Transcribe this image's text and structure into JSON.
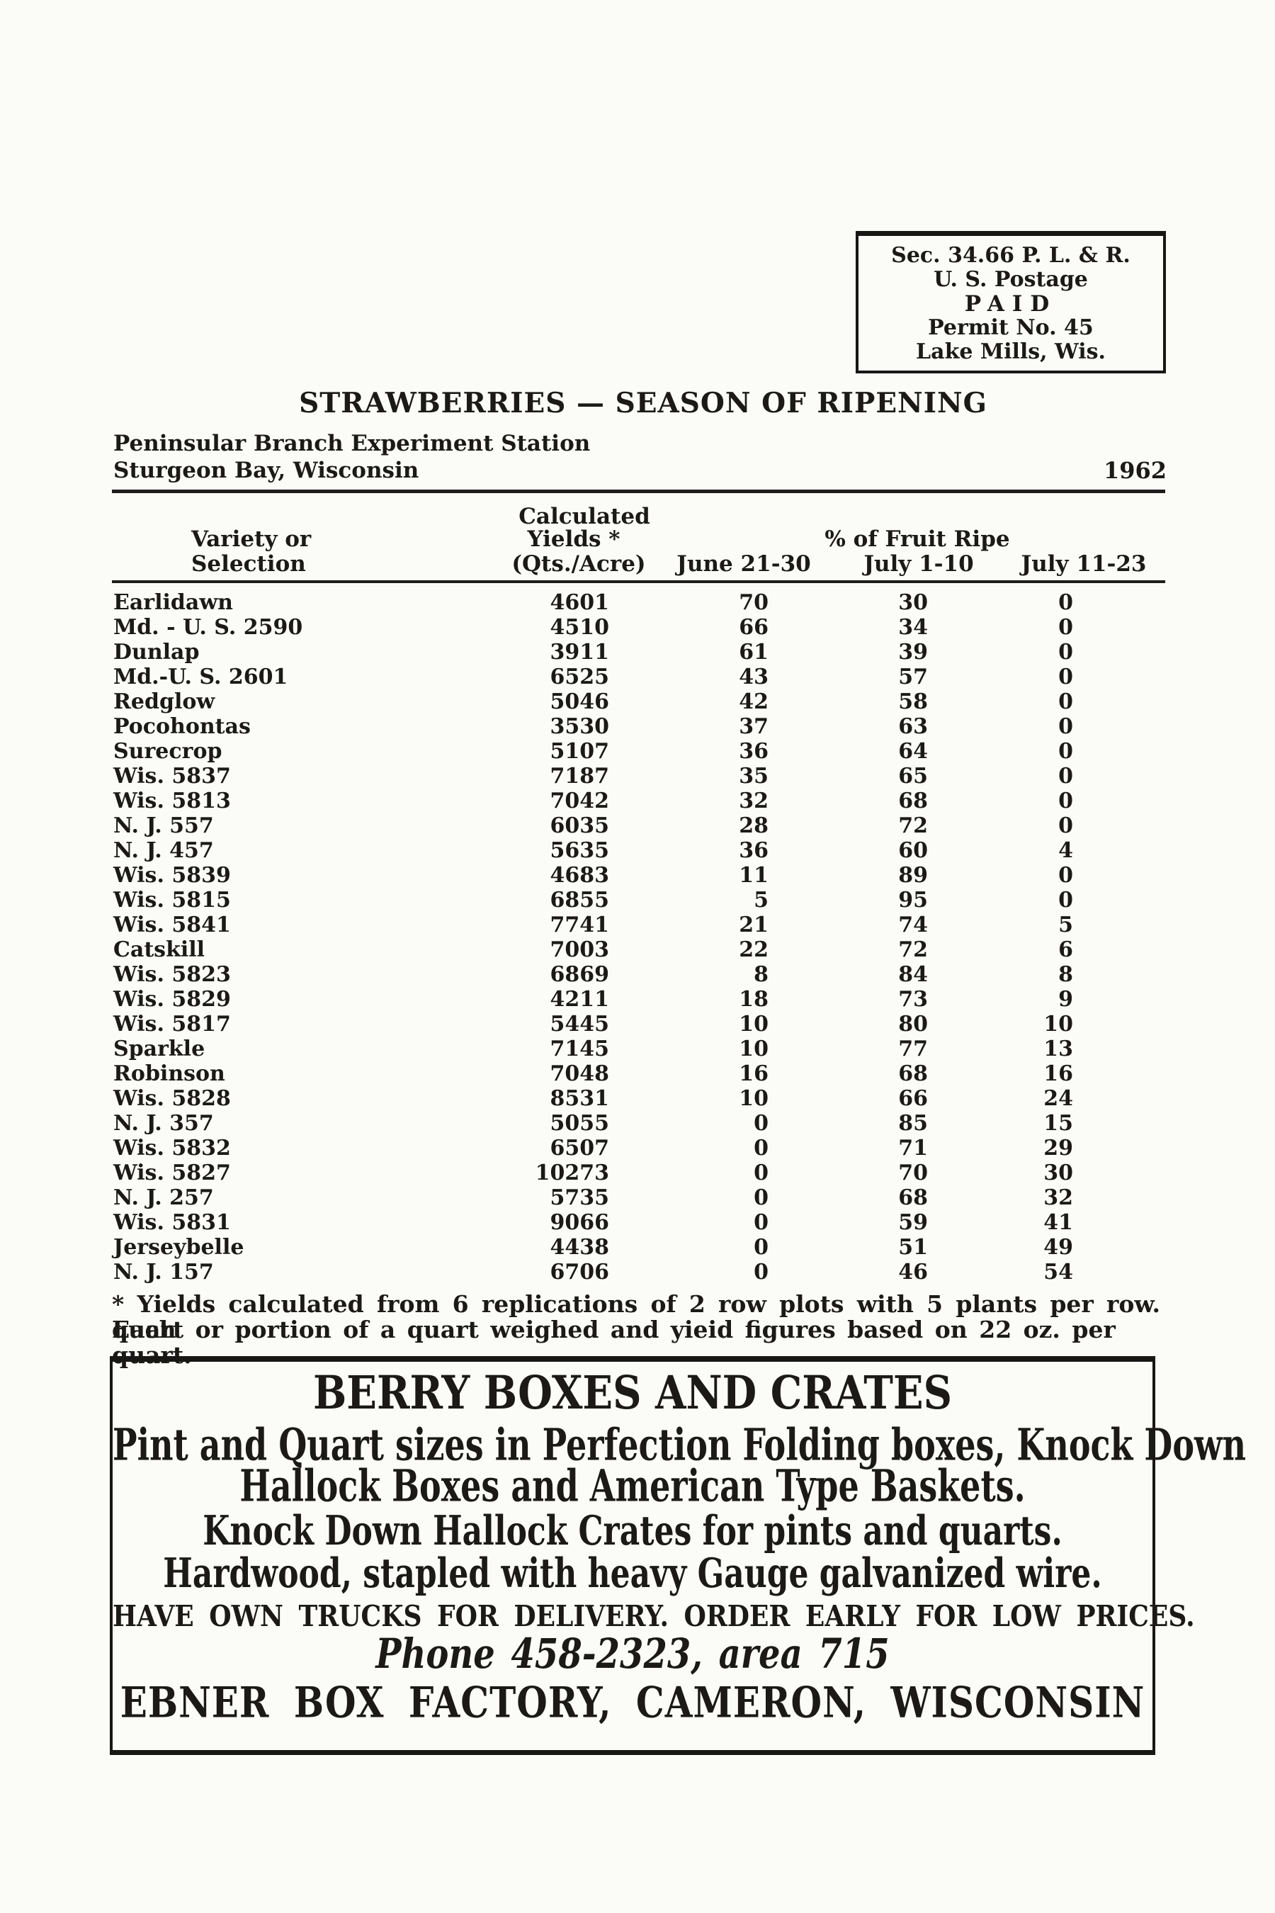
{
  "postage": {
    "line1": "Sec. 34.66 P. L. & R.",
    "line2": "U. S. Postage",
    "line3": "PAID",
    "line4": "Permit No. 45",
    "line5": "Lake Mills, Wis."
  },
  "header": {
    "title": "STRAWBERRIES — SEASON OF RIPENING",
    "station_line1": "Peninsular Branch Experiment Station",
    "station_line2": "Sturgeon Bay, Wisconsin",
    "year": "1962"
  },
  "table": {
    "col_headers": {
      "calculated": "Calculated",
      "variety_line1": "Variety or",
      "variety_line2": "Selection",
      "yields": "Yields *",
      "qts_acre": "(Qts./Acre)",
      "pct_ripe": "% of Fruit Ripe",
      "june": "June 21-30",
      "july_early": "July 1-10",
      "july_late": "July 11-23"
    },
    "rows": [
      [
        "Earlidawn",
        "4601",
        "70",
        "30",
        "0"
      ],
      [
        "Md. - U. S. 2590",
        "4510",
        "66",
        "34",
        "0"
      ],
      [
        "Dunlap",
        "3911",
        "61",
        "39",
        "0"
      ],
      [
        "Md.-U. S. 2601",
        "6525",
        "43",
        "57",
        "0"
      ],
      [
        "Redglow",
        "5046",
        "42",
        "58",
        "0"
      ],
      [
        "Pocohontas",
        "3530",
        "37",
        "63",
        "0"
      ],
      [
        "Surecrop",
        "5107",
        "36",
        "64",
        "0"
      ],
      [
        "Wis. 5837",
        "7187",
        "35",
        "65",
        "0"
      ],
      [
        "Wis. 5813",
        "7042",
        "32",
        "68",
        "0"
      ],
      [
        "N. J. 557",
        "6035",
        "28",
        "72",
        "0"
      ],
      [
        "N. J. 457",
        "5635",
        "36",
        "60",
        "4"
      ],
      [
        "Wis. 5839",
        "4683",
        "11",
        "89",
        "0"
      ],
      [
        "Wis. 5815",
        "6855",
        "5",
        "95",
        "0"
      ],
      [
        "Wis. 5841",
        "7741",
        "21",
        "74",
        "5"
      ],
      [
        "Catskill",
        "7003",
        "22",
        "72",
        "6"
      ],
      [
        "Wis. 5823",
        "6869",
        "8",
        "84",
        "8"
      ],
      [
        "Wis. 5829",
        "4211",
        "18",
        "73",
        "9"
      ],
      [
        "Wis. 5817",
        "5445",
        "10",
        "80",
        "10"
      ],
      [
        "Sparkle",
        "7145",
        "10",
        "77",
        "13"
      ],
      [
        "Robinson",
        "7048",
        "16",
        "68",
        "16"
      ],
      [
        "Wis. 5828",
        "8531",
        "10",
        "66",
        "24"
      ],
      [
        "N. J. 357",
        "5055",
        "0",
        "85",
        "15"
      ],
      [
        "Wis. 5832",
        "6507",
        "0",
        "71",
        "29"
      ],
      [
        "Wis. 5827",
        "10273",
        "0",
        "70",
        "30"
      ],
      [
        "N. J. 257",
        "5735",
        "0",
        "68",
        "32"
      ],
      [
        "Wis. 5831",
        "9066",
        "0",
        "59",
        "41"
      ],
      [
        "Jerseybelle",
        "4438",
        "0",
        "51",
        "49"
      ],
      [
        "N. J. 157",
        "6706",
        "0",
        "46",
        "54"
      ]
    ]
  },
  "footnote": {
    "line1": "* Yields calculated from 6 replications of 2 row plots with 5 plants per row. Each",
    "line2": "quart or portion of a quart weighed and yieid figures based on 22 oz. per quart."
  },
  "ad": {
    "title": "BERRY BOXES AND CRATES",
    "line1": "Pint and Quart sizes in Perfection Folding boxes, Knock Down",
    "line2": "Hallock Boxes and American Type Baskets.",
    "line3": "Knock Down Hallock Crates for pints and quarts.",
    "line4": "Hardwood, stapled with heavy Gauge galvanized wire.",
    "line5": "HAVE OWN TRUCKS FOR DELIVERY. ORDER EARLY FOR LOW PRICES.",
    "phone": "Phone 458-2323, area 715",
    "company": "EBNER BOX FACTORY, CAMERON, WISCONSIN"
  }
}
